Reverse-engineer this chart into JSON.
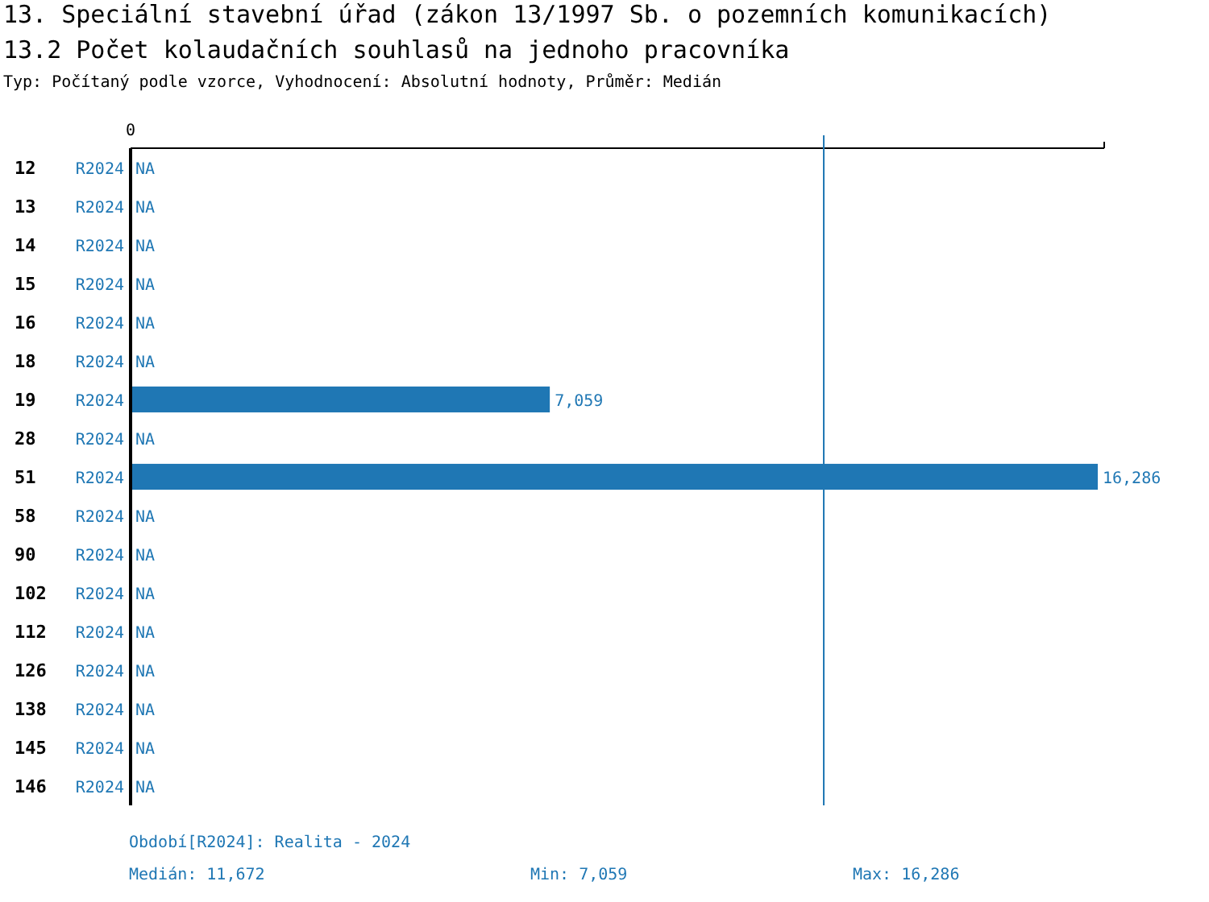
{
  "chart_data": {
    "type": "bar",
    "orientation": "horizontal",
    "title": "13. Speciální stavební úřad (zákon 13/1997 Sb. o pozemních komunikacích)",
    "subtitle": "13.2 Počet kolaudačních souhlasů na jednoho pracovníka",
    "categories": [
      "12",
      "13",
      "14",
      "15",
      "16",
      "18",
      "19",
      "28",
      "51",
      "58",
      "90",
      "102",
      "112",
      "126",
      "138",
      "145",
      "146"
    ],
    "series": [
      {
        "name": "R2024",
        "color": "#1f77b4",
        "values": [
          null,
          null,
          null,
          null,
          null,
          null,
          7059,
          null,
          16286,
          null,
          null,
          null,
          null,
          null,
          null,
          null,
          null
        ],
        "value_labels": [
          "NA",
          "NA",
          "NA",
          "NA",
          "NA",
          "NA",
          "7,059",
          "NA",
          "16,286",
          "NA",
          "NA",
          "NA",
          "NA",
          "NA",
          "NA",
          "NA",
          "NA"
        ]
      }
    ],
    "ref_lines": [
      {
        "axis": "x",
        "value": 11672,
        "color": "#1f77b4"
      }
    ],
    "legend": false,
    "annotations": [
      "Typ: Počítaný podle vzorce, Vyhodnocení: Absolutní hodnoty, Průměr: Medián",
      "0",
      "Období[R2024]: Realita - 2024",
      "Medián: 11,672",
      "Min: 7,059",
      "Max: 16,286"
    ]
  }
}
